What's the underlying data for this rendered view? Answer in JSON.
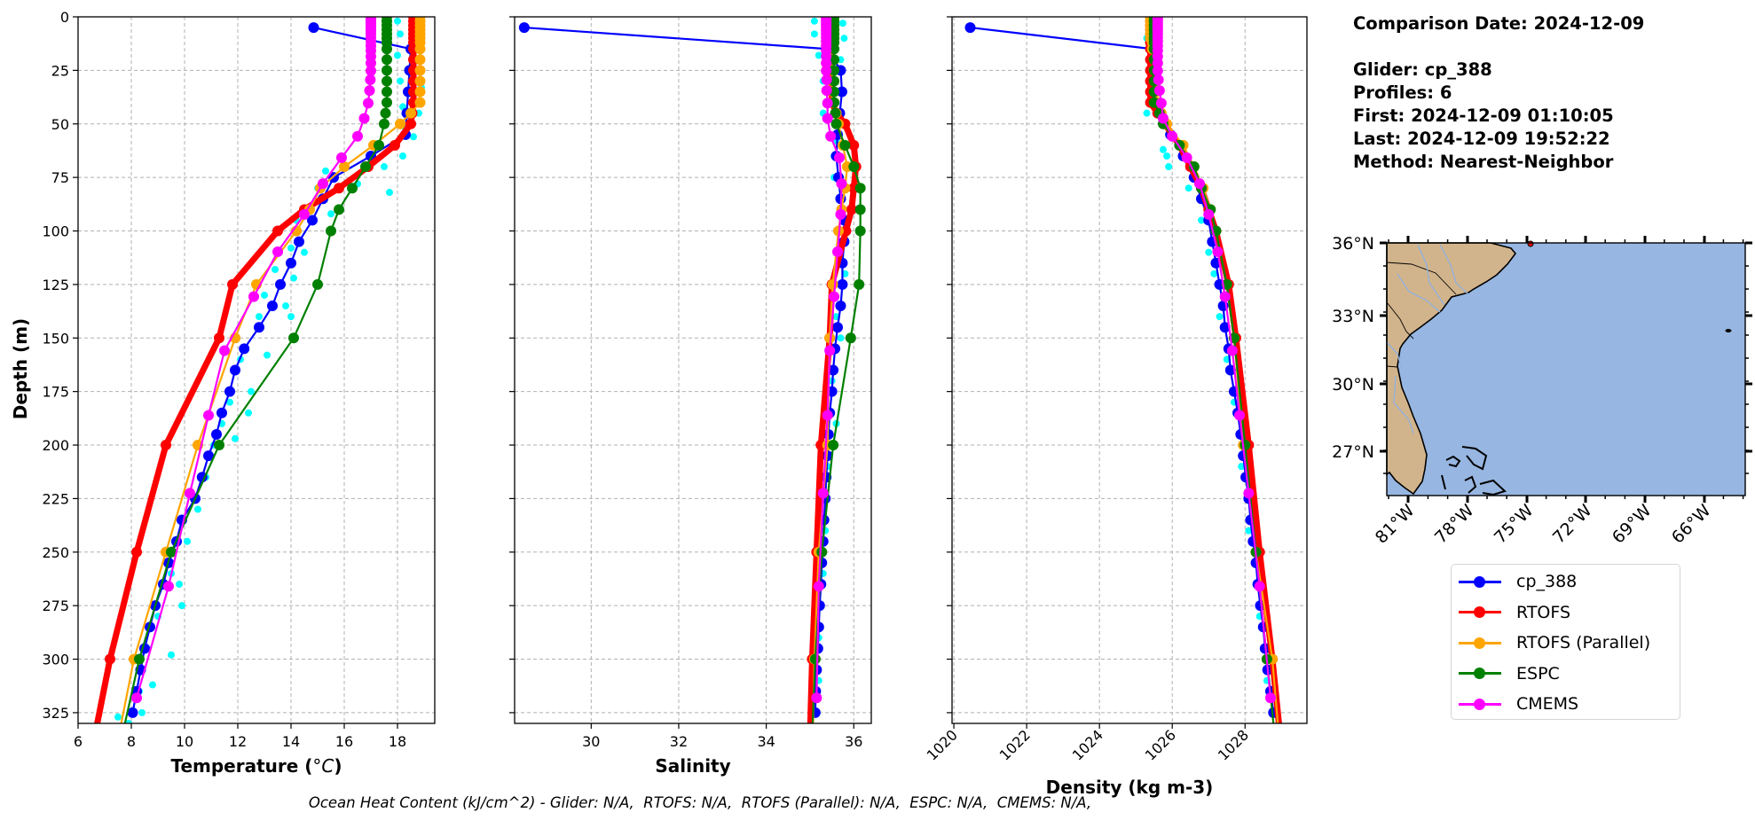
{
  "info": {
    "comparison_date": "Comparison Date: 2024-12-09",
    "glider": "Glider: cp_388",
    "profiles": "Profiles: 6",
    "first": "First: 2024-12-09 01:10:05",
    "last": "Last: 2024-12-09 19:52:22",
    "method": "Method: Nearest-Neighbor"
  },
  "footer": "Ocean Heat Content (kJ/cm^2) - Glider: N/A,  RTOFS: N/A,  RTOFS (Parallel): N/A,  ESPC: N/A,  CMEMS: N/A,",
  "legend": [
    {
      "label": "cp_388",
      "color": "#0000ff"
    },
    {
      "label": "RTOFS",
      "color": "#ff0000"
    },
    {
      "label": "RTOFS (Parallel)",
      "color": "#ffa500"
    },
    {
      "label": "ESPC",
      "color": "#008000"
    },
    {
      "label": "CMEMS",
      "color": "#ff00ff"
    }
  ],
  "ylabel": "Depth (m)",
  "ylim": [
    330,
    0
  ],
  "yticks": [
    0,
    25,
    50,
    75,
    100,
    125,
    150,
    175,
    200,
    225,
    250,
    275,
    300,
    325
  ],
  "profile_depths": {
    "cp_388": [
      5,
      15,
      25,
      35,
      45,
      55,
      65,
      75,
      85,
      95,
      105,
      115,
      125,
      135,
      145,
      155,
      165,
      175,
      185,
      195,
      205,
      215,
      225,
      235,
      245,
      255,
      265,
      275,
      285,
      295,
      305,
      315,
      325
    ],
    "RTOFS": [
      0,
      2,
      4,
      6,
      8,
      10,
      12,
      15,
      20,
      25,
      30,
      35,
      40,
      45,
      50,
      60,
      70,
      80,
      90,
      100,
      125,
      150,
      200,
      250,
      300,
      350
    ],
    "RTOFS (Parallel)": [
      0,
      2,
      4,
      6,
      8,
      10,
      12,
      15,
      20,
      25,
      30,
      35,
      40,
      45,
      50,
      60,
      70,
      80,
      90,
      100,
      125,
      150,
      200,
      250,
      300,
      350
    ],
    "ESPC": [
      0,
      2,
      4,
      6,
      8,
      10,
      12,
      15,
      20,
      25,
      30,
      35,
      40,
      45,
      50,
      60,
      70,
      80,
      90,
      100,
      125,
      150,
      200,
      250,
      300,
      350
    ],
    "CMEMS": [
      0.5,
      1.5,
      2.6,
      3.8,
      5.1,
      6.4,
      7.9,
      9.6,
      11.4,
      13.5,
      15.8,
      18.5,
      21.6,
      25.2,
      29.4,
      34.4,
      40.3,
      47.4,
      55.8,
      65.8,
      77.9,
      92.3,
      109.7,
      130.7,
      155.9,
      186.1,
      222.5,
      266.0,
      318.1
    ]
  },
  "chart_data": [
    {
      "type": "line",
      "xlabel": "Temperature (°C)",
      "xlabel_main": "Temperature (",
      "xlabel_unit": "oC",
      "xlabel_close": ")",
      "xlim": [
        6,
        19.4
      ],
      "xticks": [
        6,
        8,
        10,
        12,
        14,
        16,
        18
      ],
      "grid": true,
      "scatter": {
        "color": "#00ffff",
        "points": [
          [
            18.0,
            2
          ],
          [
            18.9,
            3
          ],
          [
            18.1,
            8
          ],
          [
            18.9,
            10
          ],
          [
            18.0,
            18
          ],
          [
            18.9,
            20
          ],
          [
            18.1,
            30
          ],
          [
            18.9,
            33
          ],
          [
            18.2,
            42
          ],
          [
            18.8,
            45
          ],
          [
            18.3,
            52
          ],
          [
            18.6,
            56
          ],
          [
            17.5,
            70
          ],
          [
            18.2,
            65
          ],
          [
            15.3,
            72
          ],
          [
            17.7,
            82
          ],
          [
            15.0,
            80
          ],
          [
            16.5,
            78
          ],
          [
            14.2,
            95
          ],
          [
            15.5,
            92
          ],
          [
            14.0,
            108
          ],
          [
            14.5,
            110
          ],
          [
            13.4,
            118
          ],
          [
            14.1,
            122
          ],
          [
            13.0,
            130
          ],
          [
            13.8,
            135
          ],
          [
            12.8,
            140
          ],
          [
            14.0,
            140
          ],
          [
            12.1,
            160
          ],
          [
            13.1,
            158
          ],
          [
            11.7,
            180
          ],
          [
            12.5,
            175
          ],
          [
            11.4,
            190
          ],
          [
            12.4,
            185
          ],
          [
            11.1,
            200
          ],
          [
            11.9,
            197
          ],
          [
            10.8,
            215
          ],
          [
            10.5,
            230
          ],
          [
            10.1,
            245
          ],
          [
            9.5,
            260
          ],
          [
            9.8,
            265
          ],
          [
            9.0,
            280
          ],
          [
            9.9,
            275
          ],
          [
            8.6,
            295
          ],
          [
            9.5,
            298
          ],
          [
            8.3,
            315
          ],
          [
            8.8,
            312
          ],
          [
            7.5,
            327
          ],
          [
            8.4,
            325
          ],
          [
            7.9,
            330
          ]
        ]
      },
      "series": [
        {
          "name": "cp_388",
          "color": "#0000ff",
          "values": [
            14.85,
            18.5,
            18.45,
            18.4,
            18.35,
            18.3,
            17.0,
            15.6,
            15.2,
            14.8,
            14.3,
            14.0,
            13.6,
            13.3,
            12.8,
            12.24,
            11.9,
            11.7,
            11.4,
            11.2,
            10.9,
            10.66,
            10.4,
            9.9,
            9.7,
            9.4,
            9.2,
            8.9,
            8.7,
            8.5,
            8.35,
            8.2,
            8.05
          ]
        },
        {
          "name": "RTOFS",
          "color": "#ff0000",
          "values": [
            18.6,
            18.6,
            18.6,
            18.6,
            18.6,
            18.6,
            18.6,
            18.6,
            18.6,
            18.6,
            18.6,
            18.6,
            18.6,
            18.55,
            18.5,
            17.9,
            16.9,
            15.8,
            14.5,
            13.5,
            11.8,
            11.3,
            9.3,
            8.2,
            7.2,
            6.4
          ]
        },
        {
          "name": "RTOFS (Parallel)",
          "color": "#ffa500",
          "values": [
            18.85,
            18.85,
            18.85,
            18.85,
            18.85,
            18.85,
            18.85,
            18.85,
            18.85,
            18.85,
            18.85,
            18.85,
            18.85,
            18.5,
            18.1,
            17.1,
            16.0,
            15.1,
            14.7,
            14.2,
            12.7,
            11.9,
            10.5,
            9.3,
            8.1,
            7.3
          ]
        },
        {
          "name": "ESPC",
          "color": "#008000",
          "values": [
            17.6,
            17.6,
            17.6,
            17.6,
            17.6,
            17.6,
            17.6,
            17.6,
            17.6,
            17.6,
            17.6,
            17.6,
            17.6,
            17.55,
            17.5,
            17.3,
            16.8,
            16.3,
            15.8,
            15.5,
            15.0,
            14.1,
            11.3,
            9.5,
            8.3,
            7.4
          ]
        },
        {
          "name": "CMEMS",
          "color": "#ff00ff",
          "values": [
            17.0,
            17.0,
            17.0,
            17.0,
            17.0,
            17.0,
            17.0,
            17.0,
            17.0,
            17.0,
            17.0,
            17.0,
            17.0,
            17.0,
            16.98,
            16.95,
            16.9,
            16.75,
            16.5,
            15.9,
            15.2,
            14.5,
            13.5,
            12.6,
            11.5,
            10.9,
            10.2,
            9.4,
            8.2
          ]
        }
      ]
    },
    {
      "type": "line",
      "xlabel": "Salinity",
      "xlim": [
        28.25,
        36.4
      ],
      "xticks": [
        30,
        32,
        34,
        36
      ],
      "grid": true,
      "scatter": {
        "color": "#00ffff",
        "points": [
          [
            35.1,
            2
          ],
          [
            35.75,
            3
          ],
          [
            35.1,
            8
          ],
          [
            35.78,
            10
          ],
          [
            35.2,
            18
          ],
          [
            35.7,
            20
          ],
          [
            35.3,
            30
          ],
          [
            35.75,
            35
          ],
          [
            35.3,
            45
          ],
          [
            35.6,
            58
          ],
          [
            35.55,
            65
          ],
          [
            35.55,
            75
          ],
          [
            35.7,
            85
          ],
          [
            35.8,
            100
          ],
          [
            35.65,
            115
          ],
          [
            35.8,
            120
          ],
          [
            35.6,
            140
          ],
          [
            35.7,
            150
          ],
          [
            35.5,
            170
          ],
          [
            35.6,
            190
          ],
          [
            35.4,
            210
          ],
          [
            35.35,
            240
          ],
          [
            35.3,
            260
          ],
          [
            35.2,
            290
          ],
          [
            35.2,
            310
          ]
        ]
      },
      "series": [
        {
          "name": "cp_388",
          "color": "#0000ff",
          "values": [
            28.47,
            35.4,
            35.7,
            35.73,
            35.68,
            35.63,
            35.6,
            35.65,
            35.7,
            35.78,
            35.78,
            35.74,
            35.74,
            35.7,
            35.63,
            35.57,
            35.53,
            35.5,
            35.45,
            35.42,
            35.4,
            35.37,
            35.35,
            35.32,
            35.3,
            35.27,
            35.25,
            35.22,
            35.2,
            35.18,
            35.15,
            35.13,
            35.12
          ]
        },
        {
          "name": "RTOFS",
          "color": "#ff0000",
          "values": [
            35.5,
            35.5,
            35.5,
            35.5,
            35.5,
            35.5,
            35.5,
            35.5,
            35.5,
            35.5,
            35.5,
            35.5,
            35.5,
            35.6,
            35.8,
            36.0,
            36.05,
            36.0,
            35.95,
            35.82,
            35.5,
            35.45,
            35.25,
            35.15,
            35.05,
            34.98
          ]
        },
        {
          "name": "RTOFS (Parallel)",
          "color": "#ffa500",
          "values": [
            35.52,
            35.52,
            35.52,
            35.52,
            35.52,
            35.52,
            35.52,
            35.52,
            35.52,
            35.52,
            35.52,
            35.52,
            35.52,
            35.6,
            35.65,
            35.75,
            35.85,
            35.8,
            35.72,
            35.65,
            35.52,
            35.45,
            35.4,
            35.2,
            35.1,
            35.05
          ]
        },
        {
          "name": "ESPC",
          "color": "#008000",
          "values": [
            35.55,
            35.55,
            35.55,
            35.55,
            35.55,
            35.55,
            35.55,
            35.55,
            35.55,
            35.55,
            35.55,
            35.55,
            35.55,
            35.58,
            35.6,
            35.8,
            36.0,
            36.15,
            36.15,
            36.15,
            36.12,
            35.93,
            35.53,
            35.27,
            35.12,
            35.02
          ]
        },
        {
          "name": "CMEMS",
          "color": "#ff00ff",
          "values": [
            35.37,
            35.37,
            35.37,
            35.37,
            35.37,
            35.37,
            35.37,
            35.37,
            35.37,
            35.37,
            35.37,
            35.37,
            35.37,
            35.37,
            35.38,
            35.38,
            35.4,
            35.4,
            35.47,
            35.67,
            35.72,
            35.7,
            35.63,
            35.55,
            35.45,
            35.4,
            35.3,
            35.2,
            35.15
          ]
        }
      ]
    },
    {
      "type": "line",
      "xlabel": "Density (kg m-3)",
      "xlim": [
        1019.95,
        1029.7
      ],
      "xticks": [
        1020,
        1022,
        1024,
        1026,
        1028
      ],
      "grid": true,
      "scatter": {
        "color": "#00ffff",
        "points": [
          [
            1025.3,
            10
          ],
          [
            1025.6,
            25
          ],
          [
            1025.3,
            45
          ],
          [
            1025.75,
            62
          ],
          [
            1025.85,
            65
          ],
          [
            1025.9,
            70
          ],
          [
            1026.45,
            80
          ],
          [
            1026.8,
            95
          ],
          [
            1027.0,
            110
          ],
          [
            1027.15,
            120
          ],
          [
            1027.3,
            140
          ],
          [
            1027.5,
            160
          ],
          [
            1027.7,
            180
          ],
          [
            1027.9,
            210
          ],
          [
            1028.1,
            240
          ],
          [
            1028.4,
            280
          ],
          [
            1028.6,
            310
          ]
        ]
      },
      "series": [
        {
          "name": "cp_388",
          "color": "#0000ff",
          "values": [
            1020.45,
            1025.45,
            1025.45,
            1025.5,
            1025.6,
            1025.95,
            1026.3,
            1026.6,
            1026.8,
            1027.0,
            1027.1,
            1027.2,
            1027.3,
            1027.4,
            1027.45,
            1027.55,
            1027.6,
            1027.7,
            1027.8,
            1027.88,
            1027.95,
            1028.02,
            1028.1,
            1028.15,
            1028.22,
            1028.3,
            1028.35,
            1028.42,
            1028.5,
            1028.55,
            1028.62,
            1028.7,
            1028.78
          ]
        },
        {
          "name": "RTOFS",
          "color": "#ff0000",
          "values": [
            1025.4,
            1025.4,
            1025.4,
            1025.4,
            1025.4,
            1025.4,
            1025.4,
            1025.4,
            1025.4,
            1025.4,
            1025.4,
            1025.4,
            1025.4,
            1025.6,
            1025.8,
            1026.2,
            1026.5,
            1026.8,
            1027.0,
            1027.2,
            1027.55,
            1027.75,
            1028.1,
            1028.4,
            1028.75,
            1029.05
          ]
        },
        {
          "name": "RTOFS (Parallel)",
          "color": "#ffa500",
          "values": [
            1025.4,
            1025.4,
            1025.4,
            1025.4,
            1025.4,
            1025.4,
            1025.45,
            1025.45,
            1025.5,
            1025.5,
            1025.55,
            1025.55,
            1025.6,
            1025.7,
            1025.85,
            1026.3,
            1026.6,
            1026.85,
            1027.05,
            1027.2,
            1027.5,
            1027.7,
            1027.95,
            1028.3,
            1028.75,
            1029.0
          ]
        },
        {
          "name": "ESPC",
          "color": "#008000",
          "values": [
            1025.5,
            1025.5,
            1025.5,
            1025.5,
            1025.5,
            1025.5,
            1025.5,
            1025.5,
            1025.5,
            1025.5,
            1025.5,
            1025.5,
            1025.5,
            1025.65,
            1025.75,
            1026.2,
            1026.6,
            1026.8,
            1027.05,
            1027.2,
            1027.5,
            1027.7,
            1028.0,
            1028.3,
            1028.6,
            1028.9
          ]
        },
        {
          "name": "CMEMS",
          "color": "#ff00ff",
          "values": [
            1025.6,
            1025.6,
            1025.6,
            1025.6,
            1025.6,
            1025.6,
            1025.6,
            1025.6,
            1025.6,
            1025.6,
            1025.6,
            1025.6,
            1025.6,
            1025.6,
            1025.62,
            1025.65,
            1025.7,
            1025.75,
            1026.0,
            1026.4,
            1026.75,
            1027.0,
            1027.25,
            1027.45,
            1027.65,
            1027.85,
            1028.1,
            1028.4,
            1028.7
          ]
        }
      ]
    }
  ],
  "map": {
    "land_color": "#d2b48c",
    "ocean_color": "#97b6e1",
    "lat_labels": [
      "36°N",
      "33°N",
      "30°N",
      "27°N"
    ],
    "lon_labels": [
      "81°W",
      "78°W",
      "75°W",
      "72°W",
      "69°W",
      "66°W"
    ]
  }
}
